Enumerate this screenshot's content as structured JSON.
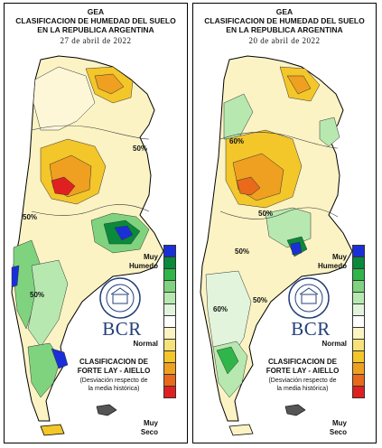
{
  "panels": [
    {
      "header1": "GEA",
      "header2": "CLASIFICACION DE HUMEDAD DEL SUELO",
      "header3": "EN LA REPUBLICA ARGENTINA",
      "date": "27 de abril de 2022",
      "contour_labels": [
        "50%",
        "50%",
        "50%"
      ]
    },
    {
      "header1": "GEA",
      "header2": "CLASIFICACION DE HUMEDAD DEL SUELO",
      "header3": "EN LA REPUBLICA ARGENTINA",
      "date": "20 de abril de 2022",
      "contour_labels": [
        "60%",
        "50%",
        "60%",
        "50%",
        "50%"
      ]
    }
  ],
  "legend": {
    "top_label_1": "Muy",
    "top_label_2": "Humedo",
    "mid_label": "Normal",
    "bottom_label_1": "Muy",
    "bottom_label_2": "Seco",
    "colors": [
      "#1a2fd8",
      "#0a8a3a",
      "#2fb54a",
      "#7fd37f",
      "#b7e8b0",
      "#e2f5dc",
      "#ffffff",
      "#fbf3c4",
      "#f7e17a",
      "#f3c62a",
      "#efa020",
      "#e86a1a",
      "#e02020"
    ]
  },
  "classification": {
    "line1": "CLASIFICACION DE",
    "line2": "FORTE LAY - AIELLO",
    "line3": "(Desviación respecto de",
    "line4": "la media histórica)"
  },
  "logo": {
    "text": "BCR",
    "seal_icon": "bolsa-de-comercio-seal-icon"
  }
}
